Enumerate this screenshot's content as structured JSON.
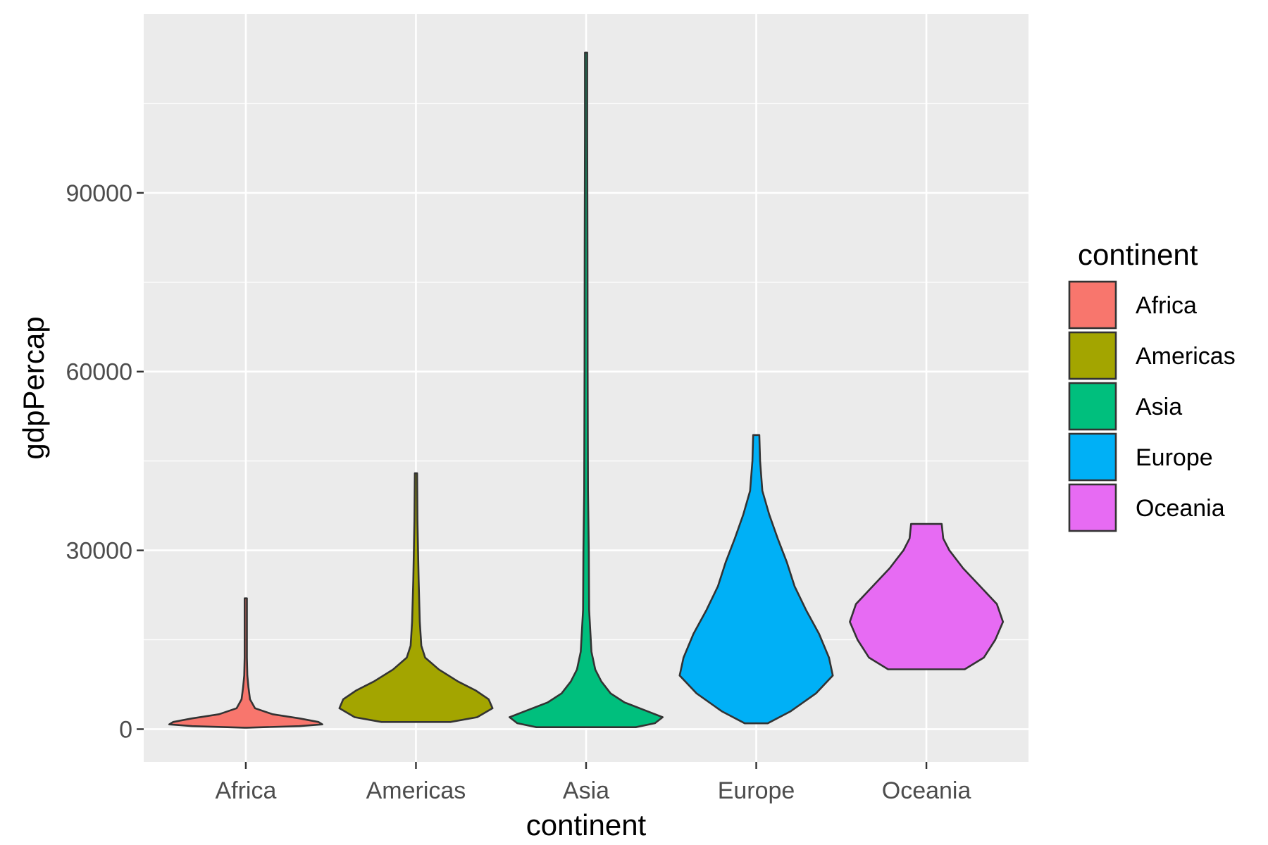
{
  "chart_data": {
    "type": "violin",
    "xlabel": "continent",
    "ylabel": "gdpPercap",
    "ylim": [
      -5500,
      120000
    ],
    "y_ticks": [
      "0",
      "30000",
      "60000",
      "90000"
    ],
    "categories": [
      "Africa",
      "Americas",
      "Asia",
      "Europe",
      "Oceania"
    ],
    "legend": {
      "title": "continent",
      "position": "right",
      "entries": [
        "Africa",
        "Americas",
        "Asia",
        "Europe",
        "Oceania"
      ]
    },
    "colors": {
      "Africa": "#F8766D",
      "Americas": "#A3A500",
      "Asia": "#00BF7D",
      "Europe": "#00B0F6",
      "Oceania": "#E76BF3",
      "panel_background": "#EBEBEB",
      "grid": "#FFFFFF"
    },
    "grid": true,
    "series": [
      {
        "name": "Africa",
        "min": 241,
        "max": 21951,
        "profile": [
          [
            241,
            0
          ],
          [
            500,
            0.7
          ],
          [
            800,
            1.0
          ],
          [
            1200,
            0.95
          ],
          [
            1800,
            0.7
          ],
          [
            2500,
            0.35
          ],
          [
            3500,
            0.12
          ],
          [
            5000,
            0.055
          ],
          [
            7000,
            0.035
          ],
          [
            9000,
            0.02
          ],
          [
            12000,
            0.012
          ],
          [
            16000,
            0.008
          ],
          [
            20000,
            0.005
          ],
          [
            21951,
            0.003
          ]
        ]
      },
      {
        "name": "Americas",
        "min": 1202,
        "max": 42952,
        "profile": [
          [
            1202,
            0.45
          ],
          [
            2000,
            0.8
          ],
          [
            3500,
            1.0
          ],
          [
            5000,
            0.95
          ],
          [
            6500,
            0.78
          ],
          [
            8000,
            0.55
          ],
          [
            10000,
            0.3
          ],
          [
            12000,
            0.12
          ],
          [
            14000,
            0.07
          ],
          [
            18000,
            0.05
          ],
          [
            25000,
            0.035
          ],
          [
            35000,
            0.02
          ],
          [
            42952,
            0.01
          ]
        ]
      },
      {
        "name": "Asia",
        "min": 331,
        "max": 113523,
        "profile": [
          [
            331,
            0.65
          ],
          [
            1000,
            0.9
          ],
          [
            2000,
            1.0
          ],
          [
            3000,
            0.8
          ],
          [
            4500,
            0.5
          ],
          [
            6000,
            0.32
          ],
          [
            8000,
            0.2
          ],
          [
            10000,
            0.12
          ],
          [
            13000,
            0.07
          ],
          [
            20000,
            0.04
          ],
          [
            30000,
            0.035
          ],
          [
            40000,
            0.025
          ],
          [
            60000,
            0.02
          ],
          [
            80000,
            0.018
          ],
          [
            100000,
            0.015
          ],
          [
            113523,
            0.01
          ]
        ]
      },
      {
        "name": "Europe",
        "min": 974,
        "max": 49357,
        "profile": [
          [
            974,
            0.15
          ],
          [
            3000,
            0.45
          ],
          [
            6000,
            0.78
          ],
          [
            9000,
            1.0
          ],
          [
            12000,
            0.95
          ],
          [
            16000,
            0.82
          ],
          [
            20000,
            0.65
          ],
          [
            24000,
            0.5
          ],
          [
            28000,
            0.4
          ],
          [
            32000,
            0.28
          ],
          [
            36000,
            0.17
          ],
          [
            40000,
            0.08
          ],
          [
            45000,
            0.05
          ],
          [
            49357,
            0.04
          ]
        ]
      },
      {
        "name": "Oceania",
        "min": 10040,
        "max": 34435,
        "profile": [
          [
            10040,
            0.5
          ],
          [
            12000,
            0.75
          ],
          [
            15000,
            0.9
          ],
          [
            18000,
            1.0
          ],
          [
            21000,
            0.92
          ],
          [
            24000,
            0.7
          ],
          [
            27000,
            0.48
          ],
          [
            30000,
            0.3
          ],
          [
            32000,
            0.22
          ],
          [
            34435,
            0.2
          ]
        ]
      }
    ]
  }
}
